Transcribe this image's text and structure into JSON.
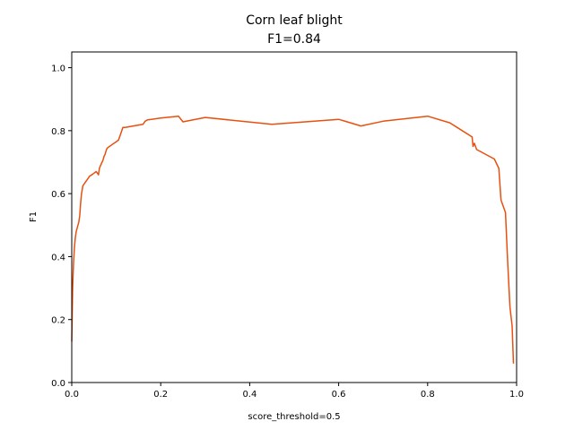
{
  "chart_data": {
    "type": "line",
    "title": "Corn leaf blight",
    "subtitle": "F1=0.84",
    "xlabel": "score_threshold=0.5",
    "ylabel": "F1",
    "xlim": [
      0.0,
      1.0
    ],
    "ylim": [
      0.0,
      1.05
    ],
    "grid": false,
    "x_ticks": [
      "0.0",
      "0.2",
      "0.4",
      "0.6",
      "0.8",
      "1.0"
    ],
    "y_ticks": [
      "0.0",
      "0.2",
      "0.4",
      "0.6",
      "0.8",
      "1.0"
    ],
    "series": [
      {
        "color": "#e8500f",
        "x": [
          0.0,
          0.002,
          0.004,
          0.006,
          0.008,
          0.01,
          0.012,
          0.014,
          0.016,
          0.018,
          0.02,
          0.022,
          0.025,
          0.03,
          0.035,
          0.04,
          0.045,
          0.05,
          0.055,
          0.06,
          0.062,
          0.065,
          0.07,
          0.073,
          0.075,
          0.078,
          0.08,
          0.085,
          0.09,
          0.1,
          0.105,
          0.11,
          0.115,
          0.12,
          0.16,
          0.165,
          0.17,
          0.2,
          0.24,
          0.25,
          0.3,
          0.45,
          0.6,
          0.65,
          0.7,
          0.8,
          0.85,
          0.9,
          0.902,
          0.905,
          0.91,
          0.95,
          0.96,
          0.965,
          0.97,
          0.975,
          0.98,
          0.985,
          0.99,
          0.993
        ],
        "y": [
          0.13,
          0.3,
          0.38,
          0.43,
          0.46,
          0.48,
          0.49,
          0.5,
          0.51,
          0.53,
          0.57,
          0.6,
          0.625,
          0.635,
          0.645,
          0.655,
          0.66,
          0.665,
          0.67,
          0.66,
          0.68,
          0.69,
          0.705,
          0.72,
          0.725,
          0.74,
          0.745,
          0.75,
          0.755,
          0.765,
          0.77,
          0.79,
          0.81,
          0.81,
          0.82,
          0.83,
          0.834,
          0.84,
          0.846,
          0.828,
          0.842,
          0.82,
          0.836,
          0.815,
          0.83,
          0.846,
          0.825,
          0.78,
          0.75,
          0.76,
          0.74,
          0.71,
          0.68,
          0.58,
          0.56,
          0.54,
          0.38,
          0.24,
          0.18,
          0.06
        ]
      }
    ]
  }
}
